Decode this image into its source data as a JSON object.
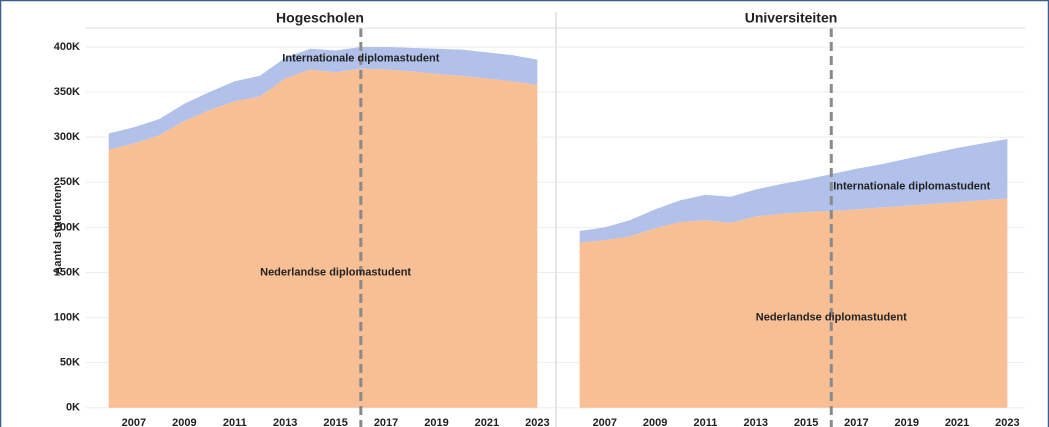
{
  "chart_data": [
    {
      "type": "area",
      "title": "Hogescholen",
      "ylabel": "Aantal studenten",
      "stacked": true,
      "x": [
        2006,
        2007,
        2008,
        2009,
        2010,
        2011,
        2012,
        2013,
        2014,
        2015,
        2016,
        2017,
        2018,
        2019,
        2020,
        2021,
        2022,
        2023
      ],
      "series": [
        {
          "name": "Nederlandse diplomastudent",
          "color": "#f9bf94",
          "values": [
            286000,
            293000,
            302000,
            318000,
            330000,
            340000,
            345000,
            365000,
            375000,
            372000,
            376000,
            375000,
            373000,
            370000,
            368000,
            365000,
            362000,
            358000
          ]
        },
        {
          "name": "Internationale diplomastudent",
          "color": "#b1c1ea",
          "values": [
            18000,
            18000,
            18000,
            19000,
            20000,
            22000,
            23000,
            23000,
            23000,
            24000,
            24000,
            25000,
            26000,
            28000,
            29000,
            29000,
            29000,
            28000
          ]
        }
      ],
      "xlim": [
        2005.1,
        2023.7
      ],
      "xticks": [
        2007,
        2009,
        2011,
        2013,
        2015,
        2017,
        2019,
        2021,
        2023
      ],
      "ylim": [
        -8000,
        421000
      ],
      "yticks": [
        {
          "value": 0,
          "label": "0K"
        },
        {
          "value": 50000,
          "label": "50K"
        },
        {
          "value": 100000,
          "label": "100K"
        },
        {
          "value": 150000,
          "label": "150K"
        },
        {
          "value": 200000,
          "label": "200K"
        },
        {
          "value": 250000,
          "label": "250K"
        },
        {
          "value": 300000,
          "label": "300K"
        },
        {
          "value": 350000,
          "label": "350K"
        },
        {
          "value": 400000,
          "label": "400K"
        }
      ],
      "grid": true,
      "vline": 2016
    },
    {
      "type": "area",
      "title": "Universiteiten",
      "stacked": true,
      "x": [
        2006,
        2007,
        2008,
        2009,
        2010,
        2011,
        2012,
        2013,
        2014,
        2015,
        2016,
        2017,
        2018,
        2019,
        2020,
        2021,
        2022,
        2023
      ],
      "series": [
        {
          "name": "Nederlandse diplomastudent",
          "color": "#f9bf94",
          "values": [
            183000,
            186000,
            190000,
            199000,
            206000,
            208000,
            205000,
            212000,
            215000,
            217000,
            218000,
            220000,
            222000,
            224000,
            226000,
            228000,
            230000,
            232000
          ]
        },
        {
          "name": "Internationale diplomastudent",
          "color": "#b1c1ea",
          "values": [
            13000,
            14000,
            18000,
            21000,
            24000,
            28000,
            29000,
            30000,
            33000,
            36000,
            41000,
            45000,
            48000,
            52000,
            56000,
            60000,
            63000,
            66000
          ]
        }
      ],
      "xlim": [
        2005.1,
        2023.7
      ],
      "xticks": [
        2007,
        2009,
        2011,
        2013,
        2015,
        2017,
        2019,
        2021,
        2023
      ],
      "ylim": [
        -8000,
        421000
      ],
      "grid": true,
      "vline": 2016
    }
  ]
}
